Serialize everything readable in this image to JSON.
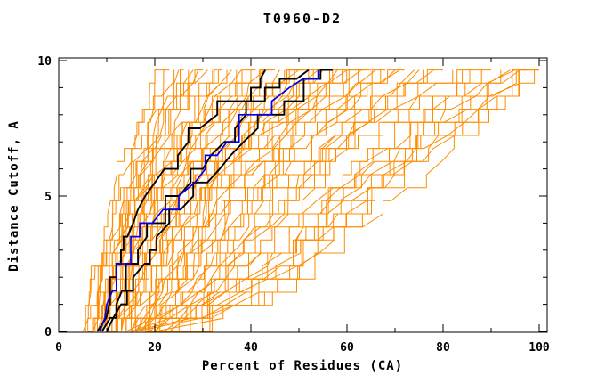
{
  "chart_data": {
    "type": "line",
    "title": "T0960-D2",
    "xlabel": "Percent of Residues (CA)",
    "ylabel": "Distance Cutoff, A",
    "xlim": [
      0,
      101.7
    ],
    "ylim": [
      0,
      10.1
    ],
    "grid": false,
    "legend": null,
    "x_major_ticks": [
      0,
      20,
      40,
      60,
      80,
      100
    ],
    "x_major_labels": [
      "0",
      "20",
      "40",
      "60",
      "80",
      "100"
    ],
    "x_minor_ticks": [
      10,
      30,
      50,
      70,
      90
    ],
    "y_major_ticks": [
      0,
      5,
      10
    ],
    "y_major_labels": [
      "0",
      "5",
      "10"
    ],
    "y_minor_ticks": [
      1,
      2,
      3,
      4,
      6,
      7,
      8,
      9
    ],
    "colors": {
      "ensemble": "#ff8c00",
      "model_highlight": "#000000",
      "model_special": "#0000ee",
      "frame": "#000000",
      "background": "#ffffff"
    },
    "curve_top_y": 9.65,
    "ensemble_curves_format": "[x_at_y=0, x_at_y=5, x_at_y=9.65] percent values, approximate",
    "ensemble_curves": [
      [
        5,
        12,
        20
      ],
      [
        5.5,
        12.5,
        22
      ],
      [
        6,
        13,
        23
      ],
      [
        6.5,
        14,
        24
      ],
      [
        7,
        15,
        25
      ],
      [
        6,
        14,
        26
      ],
      [
        7.5,
        15.5,
        27
      ],
      [
        8,
        16,
        28
      ],
      [
        7,
        15,
        29
      ],
      [
        8.5,
        17,
        30
      ],
      [
        9,
        17.5,
        31
      ],
      [
        8,
        17,
        32
      ],
      [
        7,
        16,
        33
      ],
      [
        9,
        18,
        34
      ],
      [
        10,
        18.5,
        35
      ],
      [
        8,
        17,
        36
      ],
      [
        11,
        19.5,
        37
      ],
      [
        9,
        18.5,
        38
      ],
      [
        10,
        20,
        39
      ],
      [
        12,
        21,
        40
      ],
      [
        9,
        19.5,
        41
      ],
      [
        11,
        21.5,
        42
      ],
      [
        13,
        23,
        43
      ],
      [
        10,
        20.5,
        44
      ],
      [
        12,
        22.5,
        45
      ],
      [
        14,
        25,
        46
      ],
      [
        11,
        23,
        47
      ],
      [
        13,
        24.5,
        48
      ],
      [
        15,
        27,
        49
      ],
      [
        12,
        25,
        50
      ],
      [
        14,
        26.5,
        51
      ],
      [
        16,
        29,
        52
      ],
      [
        13,
        27,
        53
      ],
      [
        15,
        29,
        54
      ],
      [
        17,
        31,
        55
      ],
      [
        12,
        26,
        56
      ],
      [
        16,
        32,
        57
      ],
      [
        18,
        33,
        58
      ],
      [
        14,
        30,
        59
      ],
      [
        17,
        34,
        60
      ],
      [
        13,
        29,
        61
      ],
      [
        18,
        35,
        62
      ],
      [
        15,
        32,
        63
      ],
      [
        19,
        37,
        64
      ],
      [
        16,
        34,
        65
      ],
      [
        20,
        39,
        66
      ],
      [
        17,
        36,
        67
      ],
      [
        21,
        41,
        68
      ],
      [
        18,
        38,
        70
      ],
      [
        22,
        43,
        71
      ],
      [
        19,
        40,
        72
      ],
      [
        23,
        45,
        74
      ],
      [
        20,
        42,
        75
      ],
      [
        24,
        47,
        76
      ],
      [
        21,
        44,
        78
      ],
      [
        25,
        49,
        80
      ],
      [
        14,
        50,
        82
      ],
      [
        18,
        52,
        84
      ],
      [
        15,
        55,
        86
      ],
      [
        19,
        57,
        88
      ],
      [
        16,
        58,
        90
      ],
      [
        20,
        60,
        92
      ],
      [
        17,
        60,
        94
      ],
      [
        20,
        63,
        96
      ],
      [
        15,
        62,
        97
      ],
      [
        19,
        66,
        98
      ],
      [
        18,
        64,
        99
      ],
      [
        20,
        70,
        100
      ],
      [
        16,
        68,
        100
      ],
      [
        14,
        58,
        95
      ]
    ],
    "highlight_curves_y_grid": [
      0,
      1,
      2,
      3,
      4,
      5,
      6,
      7,
      8,
      9,
      9.65
    ],
    "highlight_curves": [
      {
        "x": [
          8,
          10.5,
          12,
          13.5,
          15.5,
          18,
          22,
          27,
          33,
          40,
          43
        ]
      },
      {
        "x": [
          9,
          12,
          14,
          16.5,
          20,
          25,
          30,
          34.5,
          39,
          46,
          52
        ]
      },
      {
        "x": [
          10,
          13,
          15.5,
          19,
          23,
          28,
          33.5,
          38.5,
          44,
          51,
          57
        ]
      }
    ],
    "special_curve": {
      "x": [
        8.5,
        10,
        12,
        15,
        19.5,
        25,
        30.5,
        35,
        41,
        48,
        54
      ]
    }
  }
}
